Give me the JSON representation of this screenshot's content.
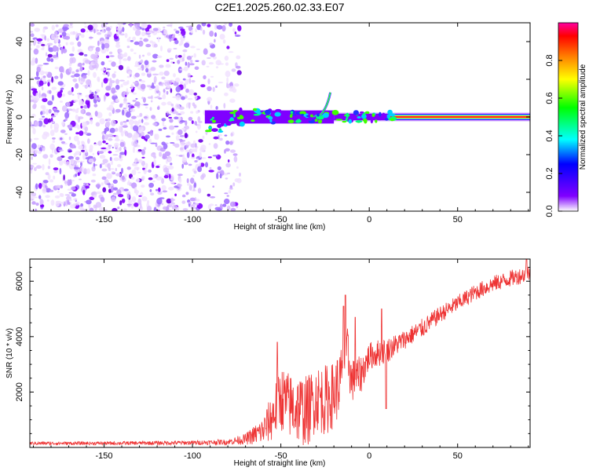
{
  "figure": {
    "title": "C2E1.2025.260.02.33.E07"
  },
  "chart_data": [
    {
      "type": "heatmap",
      "title": "",
      "xlabel": "Height of straight line (km)",
      "ylabel": "Frequency (Hz)",
      "xlim": [
        -192,
        91
      ],
      "ylim": [
        -50,
        50
      ],
      "xticks": [
        -150,
        -100,
        -50,
        0,
        50
      ],
      "xtick_labels": [
        "-150",
        "-100",
        "-50",
        "0",
        "50"
      ],
      "yticks": [
        -40,
        -20,
        0,
        20,
        40
      ],
      "ytick_labels": [
        "-40",
        "-20",
        "0",
        "20",
        "40"
      ],
      "noise_region_x": [
        -192,
        -73
      ],
      "signal_onset_x": -93,
      "carrier_frequency": 0,
      "spike_feature": {
        "x": -22,
        "frequency": 13
      },
      "colorbar": {
        "label": "Normalized spectral amplitude",
        "range": [
          0,
          1
        ],
        "ticks": [
          0.0,
          0.2,
          0.4,
          0.6,
          0.8
        ],
        "tick_labels": [
          "0.0",
          "0.2",
          "0.4",
          "0.6",
          "0.8"
        ],
        "colors": [
          "#ffffff",
          "#8000ff",
          "#0000ff",
          "#00ffff",
          "#00ff00",
          "#ffff00",
          "#ff8000",
          "#ff0000",
          "#ff00a0"
        ]
      }
    },
    {
      "type": "line",
      "title": "",
      "xlabel": "Height of straight line (km)",
      "ylabel": "SNR (10 * v/v)",
      "xlim": [
        -192,
        91
      ],
      "ylim": [
        0,
        6800
      ],
      "xticks": [
        -150,
        -100,
        -50,
        0,
        50
      ],
      "xtick_labels": [
        "-150",
        "-100",
        "-50",
        "0",
        "50"
      ],
      "yticks": [
        2000,
        4000,
        6000
      ],
      "ytick_labels": [
        "2000",
        "4000",
        "6000"
      ],
      "series": [
        {
          "name": "SNR",
          "color": "#ee3333",
          "x": [
            -192,
            -150,
            -100,
            -80,
            -70,
            -60,
            -55,
            -50,
            -45,
            -40,
            -35,
            -30,
            -25,
            -20,
            -15,
            -12,
            -10,
            -5,
            0,
            5,
            10,
            20,
            30,
            40,
            50,
            60,
            70,
            80,
            91
          ],
          "y": [
            150,
            150,
            170,
            200,
            300,
            600,
            1100,
            1800,
            1500,
            1400,
            1300,
            1800,
            1700,
            1900,
            2600,
            3300,
            2400,
            2600,
            3300,
            3400,
            3500,
            3900,
            4300,
            4800,
            5200,
            5600,
            5900,
            6100,
            6300
          ],
          "noise_amp": [
            60,
            60,
            80,
            100,
            200,
            500,
            900,
            1200,
            1200,
            1300,
            1300,
            1200,
            1300,
            1200,
            1200,
            1100,
            800,
            700,
            500,
            500,
            450,
            350,
            350,
            300,
            300,
            300,
            300,
            300,
            300
          ],
          "spikes": [
            {
              "x": -52,
              "y": 3800
            },
            {
              "x": -13.5,
              "y": 5500
            },
            {
              "x": -14.5,
              "y": 5100
            },
            {
              "x": -8,
              "y": 4700
            },
            {
              "x": 7,
              "y": 5000
            },
            {
              "x": 9.5,
              "y": 1400
            },
            {
              "x": 89,
              "y": 6800
            }
          ]
        }
      ]
    }
  ]
}
